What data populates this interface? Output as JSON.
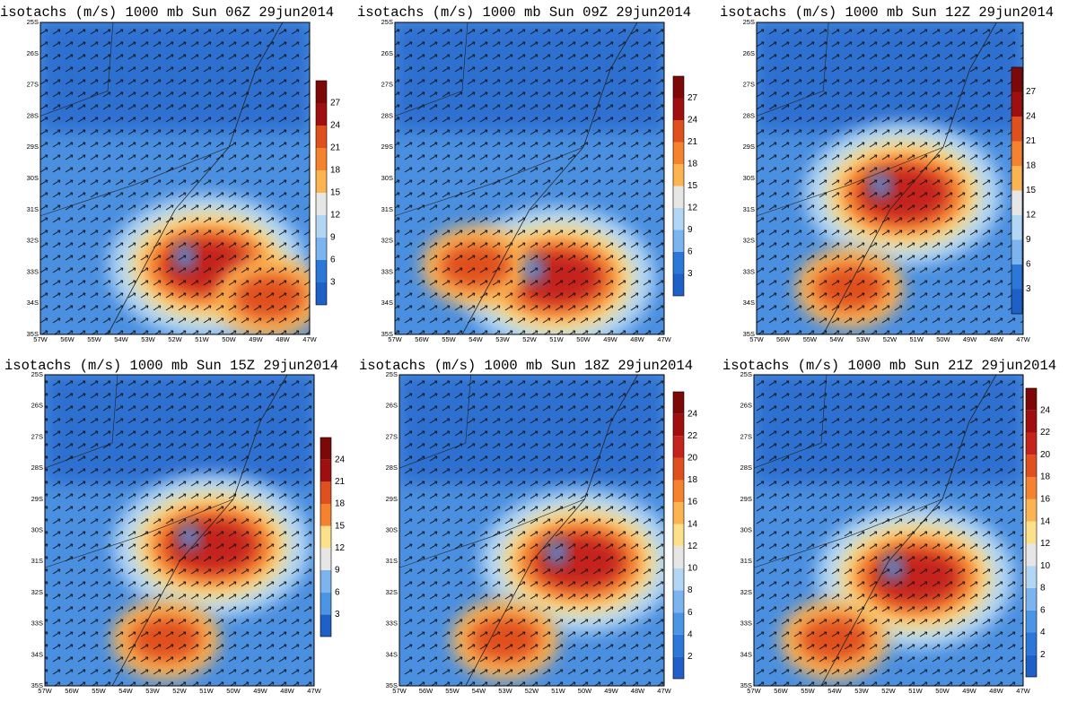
{
  "panels": [
    {
      "title": "isotachs (m/s) 1000 mb Sun 06Z 29jun2014",
      "lat_labels": [
        "25S",
        "26S",
        "27S",
        "28S",
        "29S",
        "30S",
        "31S",
        "32S",
        "33S",
        "34S",
        "35S"
      ],
      "lon_labels": [
        "57W",
        "56W",
        "55W",
        "54W",
        "53W",
        "52W",
        "51W",
        "50W",
        "49W",
        "48W",
        "47W"
      ],
      "colorbar_labels": [
        "3",
        "6",
        "9",
        "12",
        "15",
        "18",
        "21",
        "24",
        "27"
      ]
    },
    {
      "title": "isotachs (m/s) 1000 mb Sun 09Z 29jun2014",
      "lat_labels": [
        "25S",
        "26S",
        "27S",
        "28S",
        "29S",
        "30S",
        "31S",
        "32S",
        "33S",
        "34S",
        "35S"
      ],
      "lon_labels": [
        "57W",
        "56W",
        "55W",
        "54W",
        "53W",
        "52W",
        "51W",
        "50W",
        "49W",
        "48W",
        "47W"
      ],
      "colorbar_labels": [
        "3",
        "6",
        "9",
        "12",
        "15",
        "18",
        "21",
        "24",
        "27"
      ]
    },
    {
      "title": "isotachs (m/s) 1000 mb Sun 12Z 29jun2014",
      "lat_labels": [
        "25S",
        "26S",
        "27S",
        "28S",
        "29S",
        "30S",
        "31S",
        "32S",
        "33S",
        "34S",
        "35S"
      ],
      "lon_labels": [
        "57W",
        "56W",
        "55W",
        "54W",
        "53W",
        "52W",
        "51W",
        "50W",
        "49W",
        "48W",
        "47W"
      ],
      "colorbar_labels": [
        "3",
        "6",
        "9",
        "12",
        "15",
        "18",
        "21",
        "24",
        "27"
      ]
    },
    {
      "title": "isotachs (m/s) 1000 mb Sun 15Z 29jun2014",
      "lat_labels": [
        "25S",
        "26S",
        "27S",
        "28S",
        "29S",
        "30S",
        "31S",
        "32S",
        "33S",
        "34S",
        "35S"
      ],
      "lon_labels": [
        "57W",
        "56W",
        "55W",
        "54W",
        "53W",
        "52W",
        "51W",
        "50W",
        "49W",
        "48W",
        "47W"
      ],
      "colorbar_labels": [
        "3",
        "6",
        "9",
        "12",
        "15",
        "18",
        "21",
        "24"
      ]
    },
    {
      "title": "isotachs (m/s) 1000 mb Sun 18Z 29jun2014",
      "lat_labels": [
        "25S",
        "26S",
        "27S",
        "28S",
        "29S",
        "30S",
        "31S",
        "32S",
        "33S",
        "34S",
        "35S"
      ],
      "lon_labels": [
        "57W",
        "56W",
        "55W",
        "54W",
        "53W",
        "52W",
        "51W",
        "50W",
        "49W",
        "48W",
        "47W"
      ],
      "colorbar_labels": [
        "2",
        "4",
        "6",
        "8",
        "10",
        "12",
        "14",
        "16",
        "18",
        "20",
        "22",
        "24"
      ]
    },
    {
      "title": "isotachs (m/s) 1000 mb Sun 21Z 29jun2014",
      "lat_labels": [
        "25S",
        "26S",
        "27S",
        "28S",
        "29S",
        "30S",
        "31S",
        "32S",
        "33S",
        "34S",
        "35S"
      ],
      "lon_labels": [
        "57W",
        "56W",
        "55W",
        "54W",
        "53W",
        "52W",
        "51W",
        "50W",
        "49W",
        "48W",
        "47W"
      ],
      "colorbar_labels": [
        "2",
        "4",
        "6",
        "8",
        "10",
        "12",
        "14",
        "16",
        "18",
        "20",
        "22",
        "24"
      ]
    }
  ]
}
